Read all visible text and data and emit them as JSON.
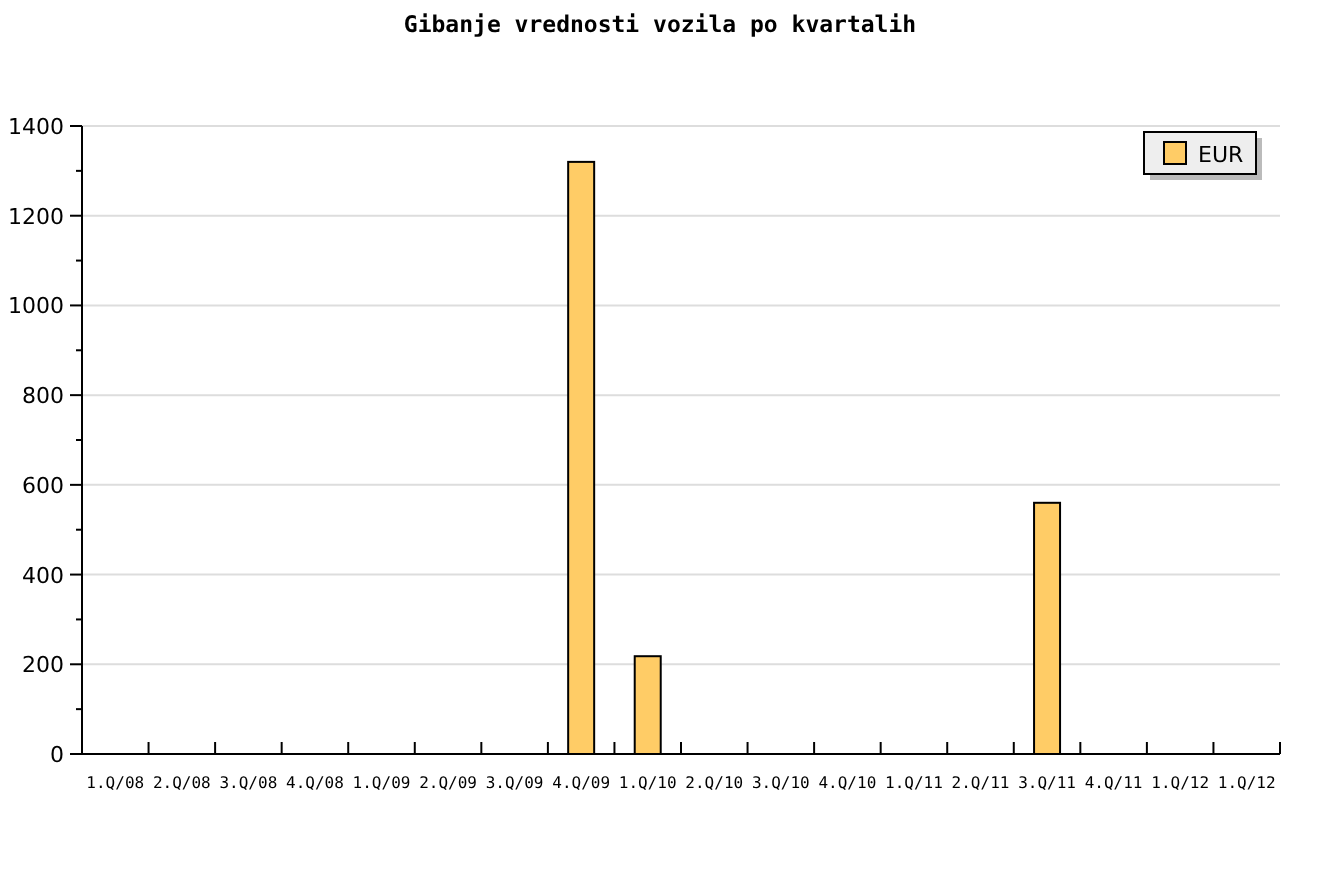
{
  "chart_data": {
    "type": "bar",
    "title": "Gibanje vrednosti vozila po kvartalih",
    "categories": [
      "1.Q/08",
      "2.Q/08",
      "3.Q/08",
      "4.Q/08",
      "1.Q/09",
      "2.Q/09",
      "3.Q/09",
      "4.Q/09",
      "1.Q/10",
      "2.Q/10",
      "3.Q/10",
      "4.Q/10",
      "1.Q/11",
      "2.Q/11",
      "3.Q/11",
      "4.Q/11",
      "1.Q/12",
      "1.Q/12"
    ],
    "series": [
      {
        "name": "EUR",
        "color": "#ffcc66",
        "values": [
          0,
          0,
          0,
          0,
          0,
          0,
          0,
          1320,
          218,
          0,
          0,
          0,
          0,
          0,
          560,
          0,
          0,
          0
        ]
      }
    ],
    "ylim": [
      0,
      1400
    ],
    "yticks": [
      0,
      200,
      400,
      600,
      800,
      1000,
      1200,
      1400
    ],
    "grid": "y",
    "legend": "top right"
  }
}
